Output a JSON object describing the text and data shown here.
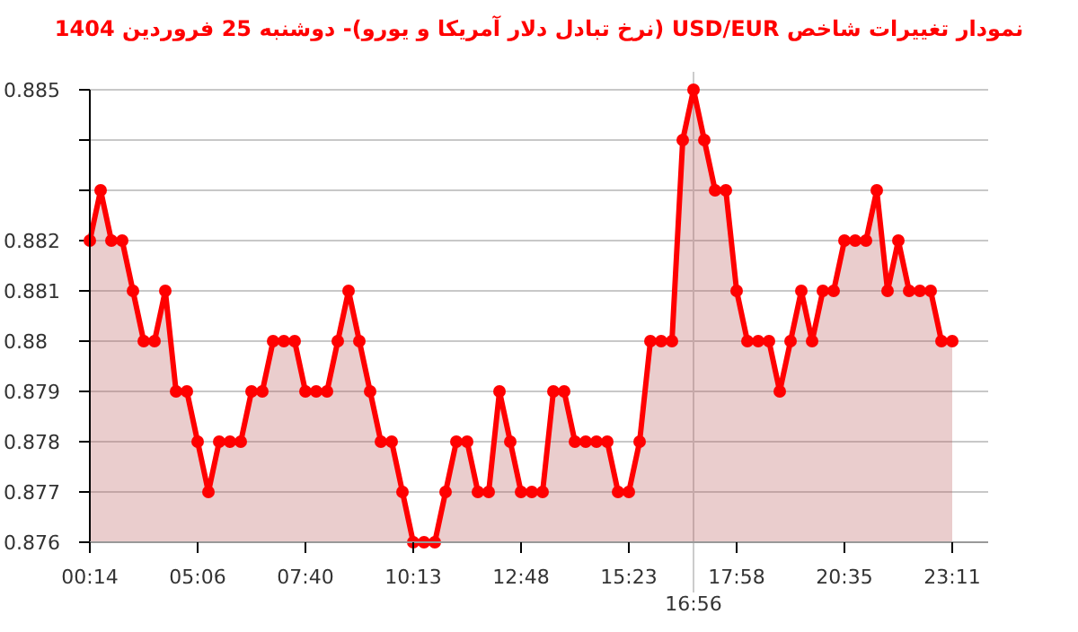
{
  "chart_data": {
    "type": "area",
    "title": "نمودار تغییرات شاخص USD/EUR (نرخ تبادل دلار آمریکا و یورو)- دوشنبه  25 فروردین 1404",
    "categories": [
      "00:14",
      null,
      null,
      null,
      null,
      null,
      null,
      null,
      null,
      null,
      "05:06",
      null,
      null,
      null,
      null,
      null,
      null,
      null,
      null,
      null,
      "07:40",
      null,
      null,
      null,
      null,
      null,
      null,
      null,
      null,
      null,
      "10:13",
      null,
      null,
      null,
      null,
      null,
      null,
      null,
      null,
      null,
      "12:48",
      null,
      null,
      null,
      null,
      null,
      null,
      null,
      null,
      null,
      "15:23",
      null,
      null,
      null,
      null,
      null,
      null,
      null,
      null,
      null,
      "17:58",
      null,
      null,
      null,
      null,
      null,
      null,
      null,
      null,
      null,
      "20:35",
      null,
      null,
      null,
      null,
      null,
      null,
      null,
      null,
      null,
      "23:11"
    ],
    "series": [
      {
        "color": "#ff0000",
        "values": [
          0.882,
          0.883,
          0.882,
          0.882,
          0.881,
          0.88,
          0.88,
          0.881,
          0.879,
          0.879,
          0.878,
          0.877,
          0.878,
          0.878,
          0.878,
          0.879,
          0.879,
          0.88,
          0.88,
          0.88,
          0.879,
          0.879,
          0.879,
          0.88,
          0.881,
          0.88,
          0.879,
          0.878,
          0.878,
          0.877,
          0.876,
          0.876,
          0.876,
          0.877,
          0.878,
          0.878,
          0.877,
          0.877,
          0.879,
          0.878,
          0.877,
          0.877,
          0.877,
          0.879,
          0.879,
          0.878,
          0.878,
          0.878,
          0.878,
          0.877,
          0.877,
          0.878,
          0.88,
          0.88,
          0.88,
          0.884,
          0.885,
          0.884,
          0.883,
          0.883,
          0.881,
          0.88,
          0.88,
          0.88,
          0.879,
          0.88,
          0.881,
          0.88,
          0.881,
          0.881,
          0.882,
          0.882,
          0.882,
          0.883,
          0.881,
          0.882,
          0.881,
          0.881,
          0.881,
          0.88,
          0.88
        ]
      }
    ],
    "ylim": [
      0.876,
      0.885
    ],
    "yticks": [
      0.876,
      0.877,
      0.878,
      0.879,
      0.88,
      0.881,
      0.882,
      {
        "value": 0.883,
        "label": null
      },
      {
        "value": 0.884,
        "label": null
      },
      0.885
    ],
    "grid": "y",
    "marker": "circle",
    "line_style": "solid",
    "ref_lines": [
      {
        "axis": "x",
        "value": "16:56",
        "color": "#cccccc"
      }
    ]
  }
}
